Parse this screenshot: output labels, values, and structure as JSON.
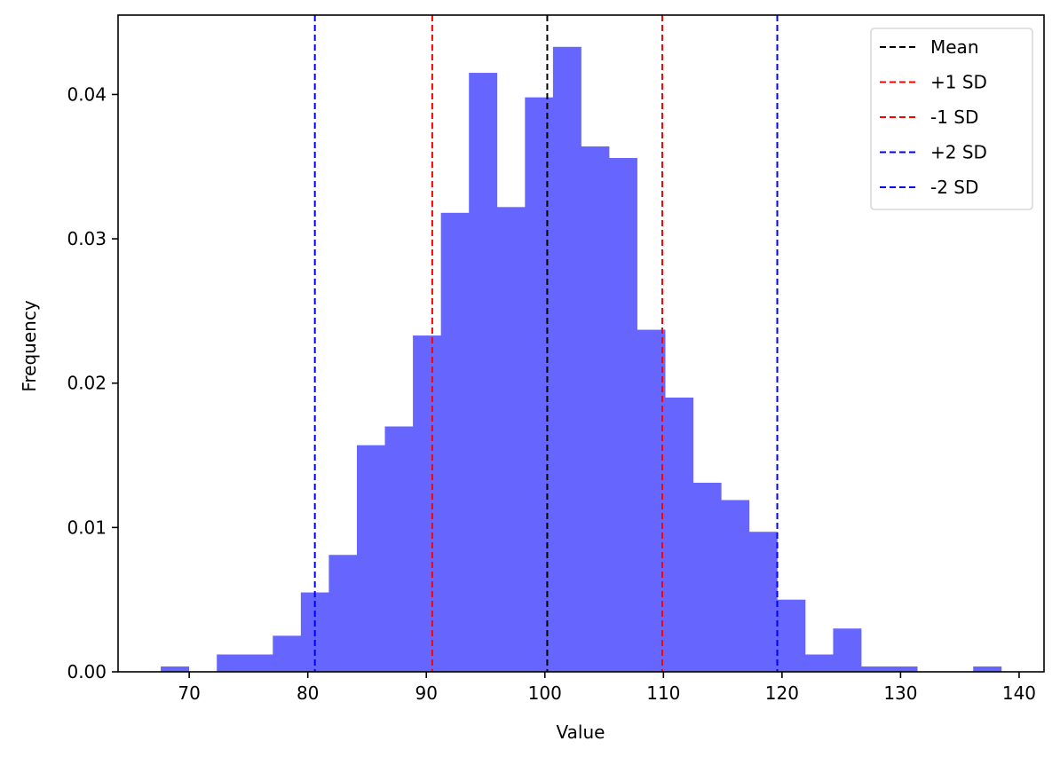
{
  "chart_data": {
    "type": "bar",
    "subtype": "histogram",
    "title": "",
    "xlabel": "Value",
    "ylabel": "Frequency",
    "xlim": [
      64.0,
      142.1
    ],
    "ylim": [
      0,
      0.0455
    ],
    "xticks": [
      70,
      80,
      90,
      100,
      110,
      120,
      130,
      140
    ],
    "xtick_labels": [
      "70",
      "80",
      "90",
      "100",
      "110",
      "120",
      "130",
      "140"
    ],
    "yticks": [
      0.0,
      0.01,
      0.02,
      0.03,
      0.04
    ],
    "ytick_labels": [
      "0.00",
      "0.01",
      "0.02",
      "0.03",
      "0.04"
    ],
    "grid": false,
    "bar_color": "#6666ff",
    "bin_start": 67.6,
    "bin_width": 2.363,
    "bin_count": 30,
    "values": [
      0.00037,
      0,
      0.0012,
      0.0012,
      0.0025,
      0.0055,
      0.0081,
      0.0157,
      0.017,
      0.0233,
      0.0318,
      0.0415,
      0.0322,
      0.0398,
      0.0433,
      0.0364,
      0.0356,
      0.0237,
      0.019,
      0.0131,
      0.0119,
      0.0097,
      0.005,
      0.0012,
      0.003,
      0.00037,
      0.00037,
      0,
      0,
      0.00037
    ],
    "vlines": [
      {
        "name": "Mean",
        "x": 100.2,
        "color": "#000000",
        "style": "dashed"
      },
      {
        "name": "+1 SD",
        "x": 109.9,
        "color": "#ff0000",
        "style": "dashed"
      },
      {
        "name": "-1 SD",
        "x": 90.5,
        "color": "#ff0000",
        "style": "dashed"
      },
      {
        "name": "+2 SD",
        "x": 119.6,
        "color": "#0000ff",
        "style": "dashed"
      },
      {
        "name": "-2 SD",
        "x": 80.6,
        "color": "#0000ff",
        "style": "dashed"
      }
    ],
    "legend": {
      "position": "upper right",
      "entries": [
        {
          "label": "Mean",
          "color": "#000000"
        },
        {
          "label": "+1 SD",
          "color": "#ff0000"
        },
        {
          "label": "-1 SD",
          "color": "#ff0000"
        },
        {
          "label": "+2 SD",
          "color": "#0000ff"
        },
        {
          "label": "-2 SD",
          "color": "#0000ff"
        }
      ]
    }
  }
}
